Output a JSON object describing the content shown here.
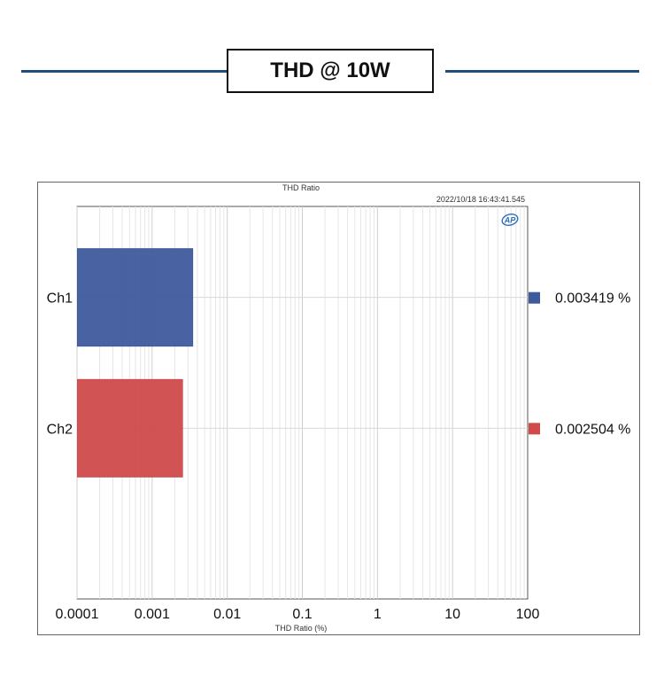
{
  "header": {
    "title": "THD @ 10W"
  },
  "chart_data": {
    "type": "bar",
    "orientation": "horizontal",
    "title": "THD Ratio",
    "timestamp": "2022/10/18 16:43:41.545",
    "xlabel": "THD Ratio (%)",
    "ylabel": "",
    "xscale": "log",
    "xlim": [
      0.0001,
      100
    ],
    "x_ticks": [
      "0.0001",
      "0.001",
      "0.01",
      "0.1",
      "1",
      "10",
      "100"
    ],
    "categories": [
      "Ch1",
      "Ch2"
    ],
    "values": [
      0.003419,
      0.002504
    ],
    "value_labels": [
      "0.003419 %",
      "0.002504 %"
    ],
    "colors": [
      "#3f5a9c",
      "#d04a4a"
    ],
    "grid": true,
    "legend": "right",
    "logo": "AP"
  }
}
